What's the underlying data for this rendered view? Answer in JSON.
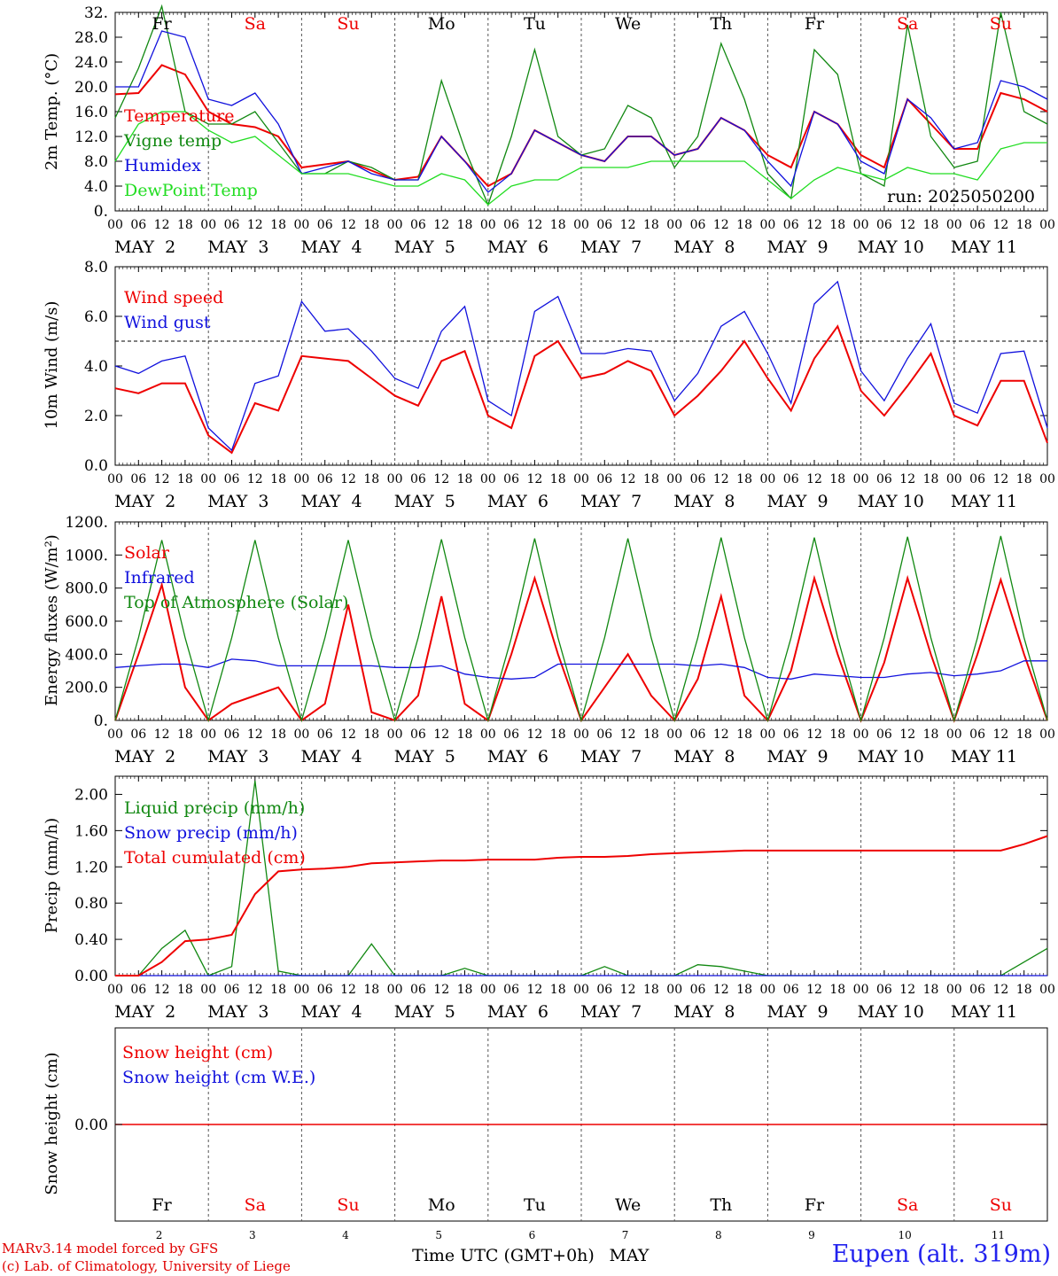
{
  "run": "run: 2025050200",
  "footer": {
    "model": "MARv3.14 model forced by GFS",
    "lab": "(c) Lab. of Climatology, University of Liege"
  },
  "station": "Eupen (alt. 319m)",
  "xlabel": "Time UTC (GMT+0h)",
  "xlabel_month": "MAY",
  "day_names": [
    "Fr",
    "Sa",
    "Su",
    "Mo",
    "Tu",
    "We",
    "Th",
    "Fr",
    "Sa",
    "Su"
  ],
  "weekend_flags": [
    false,
    true,
    true,
    false,
    false,
    false,
    false,
    false,
    true,
    true
  ],
  "date_labels": [
    "MAY  2",
    "MAY  3",
    "MAY  4",
    "MAY  5",
    "MAY  6",
    "MAY  7",
    "MAY  8",
    "MAY  9",
    "MAY 10",
    "MAY 11"
  ],
  "day_numbers": [
    "2",
    "3",
    "4",
    "5",
    "6",
    "7",
    "8",
    "9",
    "10",
    "11"
  ],
  "hour_ticks": [
    "00",
    "06",
    "12",
    "18"
  ],
  "colors": {
    "red": "#ee0000",
    "blue": "#1111dd",
    "green": "#118811",
    "lightgreen": "#22dd22",
    "grid": "#555555"
  },
  "chart_data": [
    {
      "type": "line",
      "ylabel": "2m Temp. (°C)",
      "ylim": [
        0,
        32
      ],
      "yticks": [
        "0.",
        "4.0",
        "8.0",
        "12.0",
        "16.0",
        "20.0",
        "24.0",
        "28.0",
        "32."
      ],
      "x_hours": [
        0,
        6,
        12,
        18,
        24,
        30,
        36,
        42,
        48,
        54,
        60,
        66,
        72,
        78,
        84,
        90,
        96,
        102,
        108,
        114,
        120,
        126,
        132,
        138,
        144,
        150,
        156,
        162,
        168,
        174,
        180,
        186,
        192,
        198,
        204,
        210,
        216,
        222,
        228,
        234,
        240
      ],
      "series": [
        {
          "name": "Temperature",
          "color": "red",
          "values": [
            18.8,
            19,
            23.5,
            22,
            16,
            14,
            13.5,
            12,
            7,
            7.5,
            8,
            6.5,
            5,
            5.5,
            12,
            8,
            4,
            6,
            13,
            11,
            9,
            8,
            12,
            12,
            9,
            10,
            15,
            13,
            9,
            7,
            16,
            14,
            9,
            7,
            18,
            14,
            10,
            10,
            19,
            18,
            16
          ]
        },
        {
          "name": "Vigne temp",
          "color": "green",
          "values": [
            15,
            23,
            33,
            16,
            14,
            14,
            16,
            11,
            6,
            6,
            8,
            7,
            5,
            5,
            21,
            10,
            1,
            12,
            26,
            12,
            9,
            10,
            17,
            15,
            7,
            12,
            27,
            18,
            6,
            2,
            26,
            22,
            6,
            4,
            30,
            12,
            7,
            8,
            32,
            16,
            14
          ]
        },
        {
          "name": "Humidex",
          "color": "blue",
          "values": [
            20,
            20,
            29,
            28,
            18,
            17,
            19,
            14,
            6,
            7,
            8,
            6,
            5,
            5,
            12,
            8,
            3,
            6,
            13,
            11,
            9,
            8,
            12,
            12,
            9,
            10,
            15,
            13,
            8,
            4,
            16,
            14,
            8,
            6,
            18,
            15,
            10,
            11,
            21,
            20,
            18
          ]
        },
        {
          "name": "DewPoint Temp",
          "color": "lightgreen",
          "values": [
            8,
            14,
            16,
            16,
            13,
            11,
            12,
            9,
            6,
            6,
            6,
            5,
            4,
            4,
            6,
            5,
            1,
            4,
            5,
            5,
            7,
            7,
            7,
            8,
            8,
            8,
            8,
            8,
            5,
            2,
            5,
            7,
            6,
            5,
            7,
            6,
            6,
            5,
            10,
            11,
            11
          ]
        }
      ]
    },
    {
      "type": "line",
      "ylabel": "10m Wind (m/s)",
      "ylim": [
        0,
        8
      ],
      "yticks": [
        "0.0",
        "2.0",
        "4.0",
        "6.0",
        "8.0"
      ],
      "x_hours": [
        0,
        6,
        12,
        18,
        24,
        30,
        36,
        42,
        48,
        54,
        60,
        66,
        72,
        78,
        84,
        90,
        96,
        102,
        108,
        114,
        120,
        126,
        132,
        138,
        144,
        150,
        156,
        162,
        168,
        174,
        180,
        186,
        192,
        198,
        204,
        210,
        216,
        222,
        228,
        234,
        240
      ],
      "series": [
        {
          "name": "Wind speed",
          "color": "red",
          "values": [
            3.1,
            2.9,
            3.3,
            3.3,
            1.2,
            0.5,
            2.5,
            2.2,
            4.4,
            4.3,
            4.2,
            3.5,
            2.8,
            2.4,
            4.2,
            4.6,
            2.0,
            1.5,
            4.4,
            5.0,
            3.5,
            3.7,
            4.2,
            3.8,
            2.0,
            2.8,
            3.8,
            5.0,
            3.5,
            2.2,
            4.3,
            5.6,
            3.0,
            2.0,
            3.2,
            4.5,
            2.0,
            1.6,
            3.4,
            3.4,
            0.9
          ]
        },
        {
          "name": "Wind gust",
          "color": "blue",
          "values": [
            4.0,
            3.7,
            4.2,
            4.4,
            1.5,
            0.6,
            3.3,
            3.6,
            6.6,
            5.4,
            5.5,
            4.6,
            3.5,
            3.1,
            5.4,
            6.4,
            2.6,
            2.0,
            6.2,
            6.8,
            4.5,
            4.5,
            4.7,
            4.6,
            2.6,
            3.7,
            5.6,
            6.2,
            4.5,
            2.5,
            6.5,
            7.4,
            3.8,
            2.6,
            4.3,
            5.7,
            2.5,
            2.1,
            4.5,
            4.6,
            1.5
          ]
        }
      ],
      "reference_line": 5.0
    },
    {
      "type": "line",
      "ylabel": "Energy fluxes (W/m²)",
      "ylim": [
        0,
        1200
      ],
      "yticks": [
        "0.",
        "200.0",
        "400.0",
        "600.0",
        "800.0",
        "1000.",
        "1200."
      ],
      "x_hours": [
        0,
        6,
        12,
        18,
        24,
        30,
        36,
        42,
        48,
        54,
        60,
        66,
        72,
        78,
        84,
        90,
        96,
        102,
        108,
        114,
        120,
        126,
        132,
        138,
        144,
        150,
        156,
        162,
        168,
        174,
        180,
        186,
        192,
        198,
        204,
        210,
        216,
        222,
        228,
        234,
        240
      ],
      "series": [
        {
          "name": "Solar",
          "color": "red",
          "values": [
            0,
            400,
            820,
            200,
            0,
            100,
            150,
            200,
            0,
            100,
            700,
            50,
            0,
            150,
            750,
            100,
            0,
            400,
            860,
            400,
            0,
            200,
            400,
            150,
            0,
            250,
            750,
            150,
            0,
            300,
            860,
            400,
            0,
            350,
            860,
            400,
            0,
            400,
            850,
            400,
            0
          ]
        },
        {
          "name": "Infrared",
          "color": "blue",
          "values": [
            320,
            330,
            340,
            340,
            320,
            370,
            360,
            330,
            330,
            330,
            330,
            330,
            320,
            320,
            330,
            280,
            260,
            250,
            260,
            340,
            340,
            340,
            340,
            340,
            340,
            330,
            340,
            320,
            260,
            250,
            280,
            270,
            260,
            260,
            280,
            290,
            270,
            280,
            300,
            360,
            360
          ]
        },
        {
          "name": "Top of Atmosphere (Solar)",
          "color": "green",
          "values": [
            0,
            500,
            1090,
            500,
            0,
            500,
            1090,
            500,
            0,
            500,
            1090,
            500,
            0,
            500,
            1095,
            500,
            0,
            500,
            1100,
            500,
            0,
            500,
            1100,
            500,
            0,
            500,
            1105,
            500,
            0,
            500,
            1105,
            500,
            0,
            500,
            1110,
            500,
            0,
            500,
            1115,
            500,
            0
          ]
        }
      ]
    },
    {
      "type": "line",
      "ylabel": "Precip (mm/h)",
      "ylim": [
        0,
        2.2
      ],
      "yticks": [
        "0.00",
        "0.40",
        "0.80",
        "1.20",
        "1.60",
        "2.00"
      ],
      "x_hours": [
        0,
        6,
        12,
        18,
        24,
        30,
        36,
        42,
        48,
        54,
        60,
        66,
        72,
        78,
        84,
        90,
        96,
        102,
        108,
        114,
        120,
        126,
        132,
        138,
        144,
        150,
        156,
        162,
        168,
        174,
        180,
        186,
        192,
        198,
        204,
        210,
        216,
        222,
        228,
        234,
        240
      ],
      "series": [
        {
          "name": "Liquid precip (mm/h)",
          "color": "green",
          "values": [
            0,
            0,
            0.3,
            0.5,
            0,
            0.1,
            2.15,
            0.05,
            0,
            0,
            0,
            0.35,
            0,
            0,
            0,
            0.08,
            0,
            0,
            0,
            0,
            0,
            0.1,
            0,
            0,
            0,
            0.12,
            0.1,
            0.05,
            0,
            0,
            0,
            0,
            0,
            0,
            0,
            0,
            0,
            0,
            0,
            0.15,
            0.3
          ]
        },
        {
          "name": "Snow precip (mm/h)",
          "color": "blue",
          "values": [
            0,
            0,
            0,
            0,
            0,
            0,
            0,
            0,
            0,
            0,
            0,
            0,
            0,
            0,
            0,
            0,
            0,
            0,
            0,
            0,
            0,
            0,
            0,
            0,
            0,
            0,
            0,
            0,
            0,
            0,
            0,
            0,
            0,
            0,
            0,
            0,
            0,
            0,
            0,
            0,
            0
          ]
        },
        {
          "name": "Total cumulated (cm)",
          "color": "red",
          "values": [
            0,
            0,
            0.15,
            0.38,
            0.4,
            0.45,
            0.9,
            1.15,
            1.17,
            1.18,
            1.2,
            1.24,
            1.25,
            1.26,
            1.27,
            1.27,
            1.28,
            1.28,
            1.28,
            1.3,
            1.31,
            1.31,
            1.32,
            1.34,
            1.35,
            1.36,
            1.37,
            1.38,
            1.38,
            1.38,
            1.38,
            1.38,
            1.38,
            1.38,
            1.38,
            1.38,
            1.38,
            1.38,
            1.38,
            1.45,
            1.54
          ]
        }
      ]
    },
    {
      "type": "line",
      "ylabel": "Snow height (cm)",
      "yticks": [
        "0.00"
      ],
      "series": [
        {
          "name": "Snow height (cm)",
          "color": "red",
          "values": [
            0,
            0
          ]
        },
        {
          "name": "Snow height (cm W.E.)",
          "color": "blue",
          "values": [
            0,
            0
          ]
        }
      ]
    }
  ]
}
